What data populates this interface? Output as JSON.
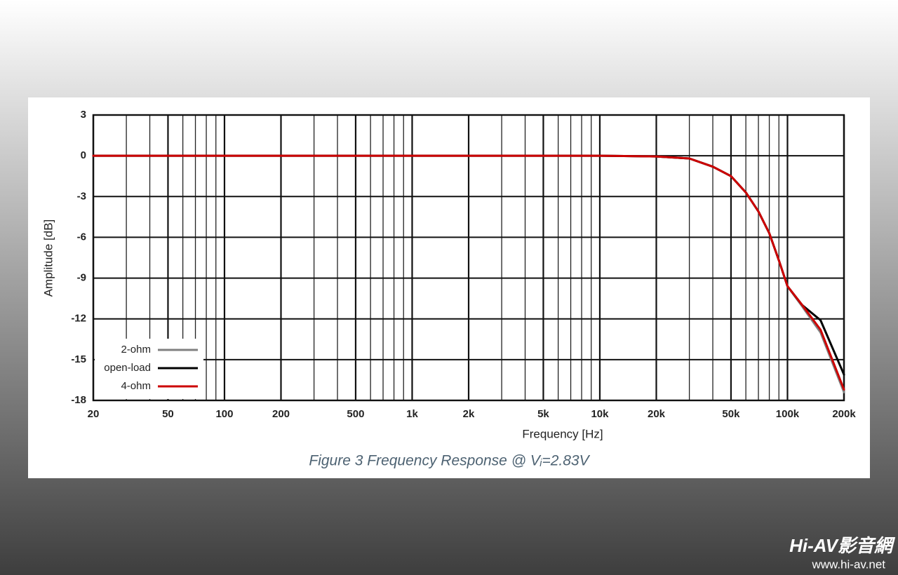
{
  "chart_data": {
    "type": "line",
    "caption": "Figure 3 Frequency Response @ Vᵢ=2.83V",
    "x_label": "Frequency [Hz]",
    "y_label": "Amplitude [dB]",
    "log_x": true,
    "grid": true,
    "legend": "lower-left",
    "xlim": [
      20,
      200000
    ],
    "ylim": [
      -18,
      3
    ],
    "xticks": [
      20,
      50,
      100,
      200,
      500,
      {
        "value": 1000,
        "label": "1k"
      },
      {
        "value": 2000,
        "label": "2k"
      },
      {
        "value": 5000,
        "label": "5k"
      },
      {
        "value": 10000,
        "label": "10k"
      },
      {
        "value": 20000,
        "label": "20k"
      },
      {
        "value": 50000,
        "label": "50k"
      },
      {
        "value": 100000,
        "label": "100k"
      },
      {
        "value": 200000,
        "label": "200k"
      }
    ],
    "xgrid_minor": [
      30,
      40,
      60,
      70,
      80,
      90,
      300,
      400,
      600,
      700,
      800,
      900,
      3000,
      4000,
      6000,
      7000,
      8000,
      9000,
      30000,
      40000,
      60000,
      70000,
      80000,
      90000
    ],
    "yticks": [
      3,
      0,
      -3,
      -6,
      -9,
      -12,
      -15,
      -18
    ],
    "x": [
      20,
      100,
      1000,
      10000,
      20000,
      30000,
      40000,
      50000,
      60000,
      70000,
      80000,
      90000,
      100000,
      120000,
      150000,
      200000
    ],
    "series": [
      {
        "name": "2-ohm",
        "color": "#808080",
        "values": [
          0,
          0,
          0,
          0,
          -0.05,
          -0.2,
          -0.8,
          -1.5,
          -2.7,
          -4.1,
          -5.7,
          -7.7,
          -9.6,
          -11.1,
          -13,
          -17.4
        ]
      },
      {
        "name": "open-load",
        "color": "#000000",
        "values": [
          0,
          0,
          0,
          0,
          -0.05,
          -0.2,
          -0.8,
          -1.5,
          -2.7,
          -4.1,
          -5.7,
          -7.7,
          -9.6,
          -11,
          -12.1,
          -16.1
        ]
      },
      {
        "name": "4-ohm",
        "color": "#cc0000",
        "values": [
          0,
          0,
          0,
          0,
          -0.05,
          -0.2,
          -0.8,
          -1.5,
          -2.7,
          -4.1,
          -5.7,
          -7.7,
          -9.6,
          -11,
          -12.8,
          -17.2
        ]
      }
    ]
  },
  "watermark": {
    "brand": "Hi-AV影音網",
    "url": "www.hi-av.net"
  }
}
